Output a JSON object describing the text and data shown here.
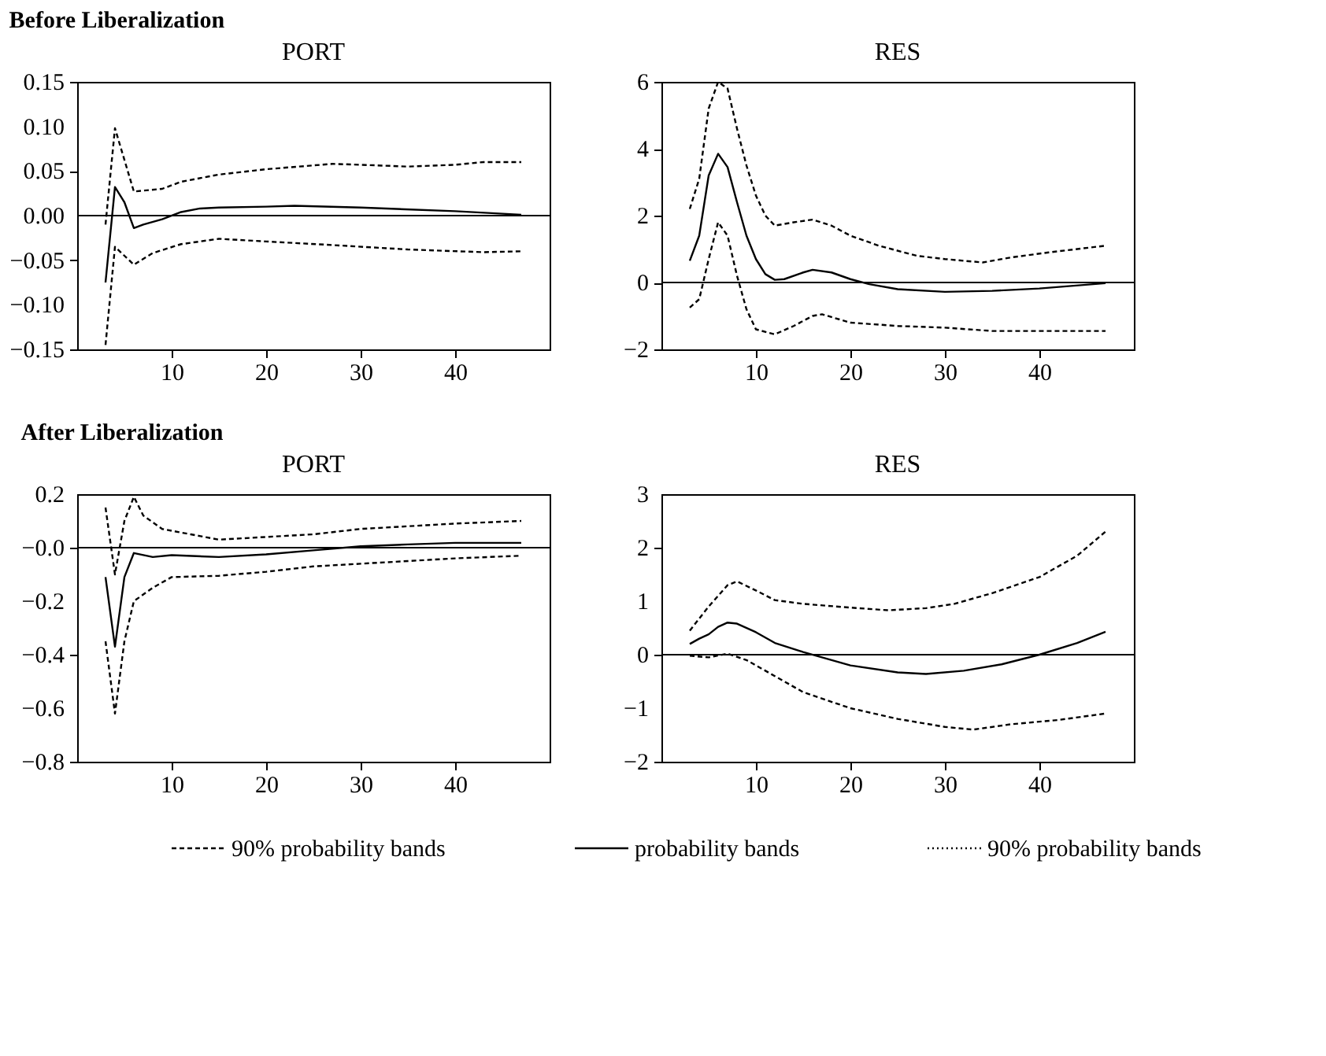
{
  "chart_data": [
    {
      "type": "line",
      "title": "PORT",
      "annotations": [
        "Before Liberalization"
      ],
      "xlim": [
        0,
        50
      ],
      "xticks": [
        10,
        20,
        30,
        40
      ],
      "ylim": [
        -0.15,
        0.15
      ],
      "yticks": [
        {
          "value": -0.15,
          "label": "−0.15"
        },
        {
          "value": -0.1,
          "label": "−0.10"
        },
        {
          "value": -0.05,
          "label": "−0.05"
        },
        {
          "value": 0,
          "label": "0.00"
        },
        {
          "value": 0.05,
          "label": "0.05"
        },
        {
          "value": 0.1,
          "label": "0.10"
        },
        0.15
      ],
      "grid": false,
      "ref_lines": [
        {
          "axis": "y",
          "value": 0,
          "color": "#000000",
          "line_style": "solid"
        }
      ],
      "series": [
        {
          "color": "#000000",
          "line_style": "dashed",
          "x": [
            3,
            4,
            6,
            9,
            11,
            15,
            20,
            27,
            30,
            35,
            40,
            43,
            47
          ],
          "values": [
            -0.01,
            0.098,
            0.027,
            0.03,
            0.038,
            0.046,
            0.052,
            0.058,
            0.057,
            0.055,
            0.057,
            0.06,
            0.06
          ]
        },
        {
          "color": "#000000",
          "line_style": "solid",
          "x": [
            3,
            4,
            5,
            6,
            7,
            9,
            11,
            13,
            15,
            20,
            23,
            30,
            40,
            47
          ],
          "values": [
            -0.075,
            0.032,
            0.015,
            -0.014,
            -0.01,
            -0.004,
            0.004,
            0.008,
            0.009,
            0.01,
            0.011,
            0.009,
            0.005,
            0.001
          ]
        },
        {
          "color": "#000000",
          "line_style": "dashed",
          "x": [
            3,
            4,
            5,
            6,
            8,
            11,
            15,
            20,
            27,
            35,
            43,
            47
          ],
          "values": [
            -0.145,
            -0.035,
            -0.045,
            -0.055,
            -0.042,
            -0.032,
            -0.026,
            -0.029,
            -0.033,
            -0.038,
            -0.041,
            -0.04
          ]
        }
      ]
    },
    {
      "type": "line",
      "title": "RES",
      "xlim": [
        0,
        50
      ],
      "xticks": [
        10,
        20,
        30,
        40
      ],
      "ylim": [
        -2,
        6
      ],
      "yticks": [
        {
          "value": -2,
          "label": "−2"
        },
        0,
        2,
        4,
        6
      ],
      "grid": false,
      "ref_lines": [
        {
          "axis": "y",
          "value": 0,
          "color": "#000000",
          "line_style": "solid"
        }
      ],
      "series": [
        {
          "color": "#000000",
          "line_style": "dashed",
          "x": [
            3,
            4,
            5,
            6,
            7,
            8,
            9,
            10,
            11,
            12,
            14,
            16,
            18,
            20,
            23,
            27,
            30,
            34,
            37,
            41,
            47
          ],
          "values": [
            2.2,
            3.1,
            5.2,
            6.0,
            5.8,
            4.6,
            3.5,
            2.6,
            2.0,
            1.7,
            1.8,
            1.88,
            1.7,
            1.4,
            1.1,
            0.8,
            0.7,
            0.6,
            0.75,
            0.9,
            1.1
          ]
        },
        {
          "color": "#000000",
          "line_style": "solid",
          "x": [
            3,
            4,
            5,
            6,
            7,
            8,
            9,
            10,
            11,
            12,
            13,
            15,
            16,
            18,
            20,
            22,
            25,
            30,
            35,
            40,
            47
          ],
          "values": [
            0.65,
            1.4,
            3.2,
            3.85,
            3.45,
            2.4,
            1.4,
            0.7,
            0.25,
            0.08,
            0.1,
            0.3,
            0.38,
            0.3,
            0.1,
            -0.05,
            -0.2,
            -0.28,
            -0.25,
            -0.18,
            -0.02
          ]
        },
        {
          "color": "#000000",
          "line_style": "dashed",
          "x": [
            3,
            4,
            5,
            6,
            7,
            8,
            9,
            10,
            12,
            14,
            16,
            17,
            20,
            25,
            30,
            35,
            40,
            47
          ],
          "values": [
            -0.75,
            -0.5,
            0.7,
            1.8,
            1.4,
            0.2,
            -0.8,
            -1.4,
            -1.55,
            -1.3,
            -1.0,
            -0.95,
            -1.2,
            -1.3,
            -1.35,
            -1.45,
            -1.45,
            -1.45
          ]
        }
      ]
    },
    {
      "type": "line",
      "title": "PORT",
      "annotations": [
        "After Liberalization"
      ],
      "xlim": [
        0,
        50
      ],
      "xticks": [
        10,
        20,
        30,
        40
      ],
      "ylim": [
        -0.8,
        0.2
      ],
      "yticks": [
        {
          "value": -0.8,
          "label": "−0.8"
        },
        {
          "value": -0.6,
          "label": "−0.6"
        },
        {
          "value": -0.4,
          "label": "−0.4"
        },
        {
          "value": -0.2,
          "label": "−0.2"
        },
        {
          "value": 0,
          "label": "−0.0"
        },
        0.2
      ],
      "grid": false,
      "ref_lines": [
        {
          "axis": "y",
          "value": 0,
          "color": "#000000",
          "line_style": "solid"
        }
      ],
      "series": [
        {
          "color": "#000000",
          "line_style": "dashed",
          "x": [
            3,
            4,
            5,
            6,
            7,
            9,
            12,
            15,
            20,
            25,
            30,
            35,
            40,
            47
          ],
          "values": [
            0.15,
            -0.1,
            0.1,
            0.19,
            0.12,
            0.07,
            0.05,
            0.03,
            0.04,
            0.05,
            0.07,
            0.08,
            0.09,
            0.1
          ]
        },
        {
          "color": "#000000",
          "line_style": "solid",
          "x": [
            3,
            4,
            5,
            6,
            8,
            10,
            15,
            20,
            25,
            30,
            35,
            40,
            47
          ],
          "values": [
            -0.11,
            -0.37,
            -0.11,
            -0.02,
            -0.035,
            -0.028,
            -0.035,
            -0.025,
            -0.01,
            0.005,
            0.012,
            0.018,
            0.018
          ]
        },
        {
          "color": "#000000",
          "line_style": "dashed",
          "x": [
            3,
            4,
            5,
            6,
            8,
            10,
            15,
            20,
            25,
            30,
            35,
            40,
            47
          ],
          "values": [
            -0.35,
            -0.62,
            -0.35,
            -0.2,
            -0.15,
            -0.11,
            -0.105,
            -0.09,
            -0.07,
            -0.06,
            -0.05,
            -0.04,
            -0.03
          ]
        }
      ]
    },
    {
      "type": "line",
      "title": "RES",
      "annotations": [
        "90% probability bands"
      ],
      "legend": "bottom",
      "xlim": [
        0,
        50
      ],
      "xticks": [
        10,
        20,
        30,
        40
      ],
      "ylim": [
        -2,
        3
      ],
      "yticks": [
        {
          "value": -2,
          "label": "−2"
        },
        {
          "value": -1,
          "label": "−1"
        },
        0,
        1,
        2,
        3
      ],
      "grid": false,
      "ref_lines": [
        {
          "axis": "y",
          "value": 0,
          "color": "#000000",
          "line_style": "solid"
        }
      ],
      "series": [
        {
          "name": "90% probability bands",
          "color": "#000000",
          "line_style": "dashed",
          "x": [
            3,
            5,
            7,
            8,
            10,
            12,
            15,
            20,
            24,
            28,
            31,
            35,
            40,
            44,
            47
          ],
          "values": [
            0.45,
            0.9,
            1.3,
            1.37,
            1.2,
            1.02,
            0.95,
            0.88,
            0.83,
            0.87,
            0.95,
            1.15,
            1.45,
            1.85,
            2.3
          ]
        },
        {
          "name": "probability bands",
          "color": "#000000",
          "line_style": "solid",
          "x": [
            3,
            4,
            5,
            6,
            7,
            8,
            10,
            12,
            15,
            20,
            25,
            28,
            32,
            36,
            40,
            44,
            47
          ],
          "values": [
            0.2,
            0.3,
            0.38,
            0.52,
            0.6,
            0.58,
            0.42,
            0.22,
            0.05,
            -0.2,
            -0.33,
            -0.36,
            -0.3,
            -0.18,
            0.0,
            0.22,
            0.43
          ]
        },
        {
          "color": "#000000",
          "line_style": "dashed",
          "x": [
            3,
            5,
            7,
            9,
            12,
            15,
            20,
            25,
            30,
            33,
            37,
            42,
            47
          ],
          "values": [
            -0.02,
            -0.05,
            0.02,
            -0.1,
            -0.4,
            -0.7,
            -1.0,
            -1.2,
            -1.35,
            -1.4,
            -1.3,
            -1.22,
            -1.1
          ]
        }
      ]
    }
  ]
}
